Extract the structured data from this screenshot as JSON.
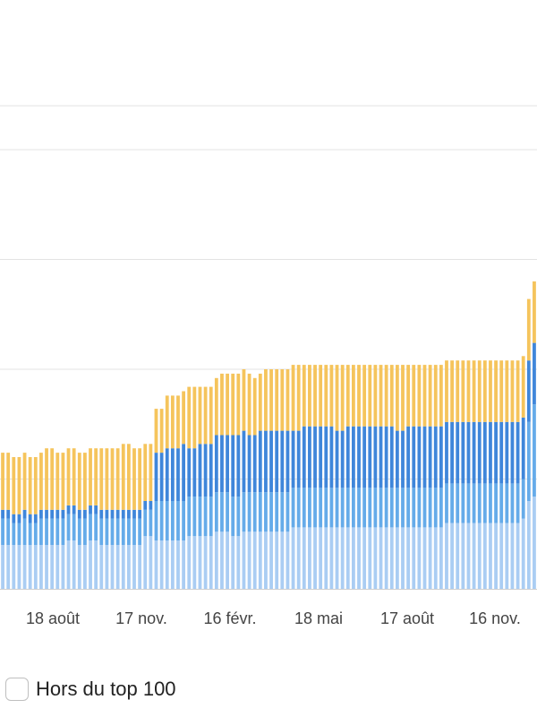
{
  "chart_data": {
    "type": "bar",
    "stacked": true,
    "x_tick_labels": [
      "18 août",
      "17 nov.",
      "16 févr.",
      "18 mai",
      "17 août",
      "16 nov."
    ],
    "ylim": [
      0,
      110
    ],
    "grid": true,
    "series": [
      {
        "color": "#aacdf3",
        "values": [
          10,
          10,
          10,
          10,
          10,
          10,
          10,
          10,
          10,
          10,
          10,
          10,
          11,
          11,
          10,
          10,
          11,
          11,
          10,
          10,
          10,
          10,
          10,
          10,
          10,
          10,
          12,
          12,
          11,
          11,
          11,
          11,
          11,
          11,
          12,
          12,
          12,
          12,
          12,
          13,
          13,
          13,
          12,
          12,
          13,
          13,
          13,
          13,
          13,
          13,
          13,
          13,
          13,
          14,
          14,
          14,
          14,
          14,
          14,
          14,
          14,
          14,
          14,
          14,
          14,
          14,
          14,
          14,
          14,
          14,
          14,
          14,
          14,
          14,
          14,
          14,
          14,
          14,
          14,
          14,
          14,
          15,
          15,
          15,
          15,
          15,
          15,
          15,
          15,
          15,
          15,
          15,
          15,
          15,
          15,
          16,
          20,
          21
        ]
      },
      {
        "color": "#65abe9",
        "values": [
          6,
          6,
          5,
          5,
          6,
          5,
          5,
          6,
          6,
          6,
          6,
          6,
          6,
          6,
          6,
          6,
          6,
          6,
          6,
          6,
          6,
          6,
          6,
          6,
          6,
          6,
          6,
          6,
          9,
          9,
          9,
          9,
          9,
          9,
          9,
          9,
          9,
          9,
          9,
          9,
          9,
          9,
          9,
          9,
          9,
          9,
          9,
          9,
          9,
          9,
          9,
          9,
          9,
          9,
          9,
          9,
          9,
          9,
          9,
          9,
          9,
          9,
          9,
          9,
          9,
          9,
          9,
          9,
          9,
          9,
          9,
          9,
          9,
          9,
          9,
          9,
          9,
          9,
          9,
          9,
          9,
          9,
          9,
          9,
          9,
          9,
          9,
          9,
          9,
          9,
          9,
          9,
          9,
          9,
          9,
          9,
          18,
          21
        ]
      },
      {
        "color": "#3f86da",
        "values": [
          2,
          2,
          2,
          2,
          2,
          2,
          2,
          2,
          2,
          2,
          2,
          2,
          2,
          2,
          2,
          2,
          2,
          2,
          2,
          2,
          2,
          2,
          2,
          2,
          2,
          2,
          2,
          2,
          11,
          11,
          12,
          12,
          12,
          13,
          11,
          11,
          12,
          12,
          12,
          13,
          13,
          13,
          14,
          14,
          14,
          13,
          13,
          14,
          14,
          14,
          14,
          14,
          14,
          13,
          13,
          14,
          14,
          14,
          14,
          14,
          14,
          13,
          13,
          14,
          14,
          14,
          14,
          14,
          14,
          14,
          14,
          14,
          13,
          13,
          14,
          14,
          14,
          14,
          14,
          14,
          14,
          14,
          14,
          14,
          14,
          14,
          14,
          14,
          14,
          14,
          14,
          14,
          14,
          14,
          14,
          14,
          14,
          14
        ]
      },
      {
        "color": "#f5c45c",
        "values": [
          13,
          13,
          13,
          13,
          13,
          13,
          13,
          13,
          14,
          14,
          13,
          13,
          13,
          13,
          13,
          13,
          13,
          13,
          14,
          14,
          14,
          14,
          15,
          15,
          14,
          14,
          13,
          13,
          10,
          10,
          12,
          12,
          12,
          12,
          14,
          14,
          13,
          13,
          13,
          13,
          14,
          14,
          14,
          14,
          14,
          14,
          13,
          13,
          14,
          14,
          14,
          14,
          14,
          15,
          15,
          14,
          14,
          14,
          14,
          14,
          14,
          15,
          15,
          14,
          14,
          14,
          14,
          14,
          14,
          14,
          14,
          14,
          15,
          15,
          14,
          14,
          14,
          14,
          14,
          14,
          14,
          14,
          14,
          14,
          14,
          14,
          14,
          14,
          14,
          14,
          14,
          14,
          14,
          14,
          14,
          14,
          14,
          14
        ]
      }
    ]
  },
  "legend": {
    "label": "Hors du top 100"
  }
}
